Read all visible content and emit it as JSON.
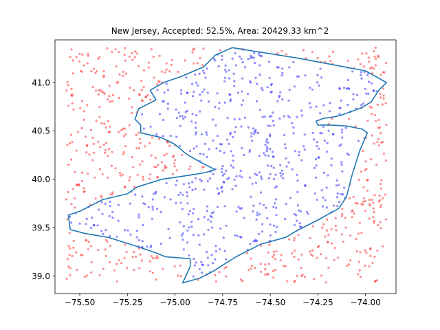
{
  "chart_data": {
    "type": "scatter",
    "title": "New Jersey, Accepted: 52.5%, Area: 20429.33 km^2",
    "xlabel": "",
    "ylabel": "",
    "xlim": [
      -75.63,
      -73.84
    ],
    "ylim": [
      38.82,
      41.44
    ],
    "grid": false,
    "x_ticks": [
      {
        "value": -75.5,
        "label": "−75.50"
      },
      {
        "value": -75.25,
        "label": "−75.25"
      },
      {
        "value": -75.0,
        "label": "−75.00"
      },
      {
        "value": -74.75,
        "label": "−74.75"
      },
      {
        "value": -74.5,
        "label": "−74.50"
      },
      {
        "value": -74.25,
        "label": "−74.25"
      },
      {
        "value": -74.0,
        "label": "−74.00"
      }
    ],
    "y_ticks": [
      {
        "value": 39.0,
        "label": "39.0"
      },
      {
        "value": 39.5,
        "label": "39.5"
      },
      {
        "value": 40.0,
        "label": "40.0"
      },
      {
        "value": 40.5,
        "label": "40.5"
      },
      {
        "value": 41.0,
        "label": "41.0"
      }
    ],
    "sampling_region": {
      "x": [
        -75.57,
        -73.89
      ],
      "y": [
        38.93,
        41.36
      ]
    },
    "accepted_fraction": 0.525,
    "series": [
      {
        "role": "accepted",
        "type": "scatter",
        "color": "#0000ff",
        "opacity": 0.45
      },
      {
        "role": "rejected",
        "type": "scatter",
        "color": "#ff0000",
        "opacity": 0.45
      },
      {
        "role": "boundary",
        "type": "line",
        "color": "#1f77b4",
        "points": [
          [
            -74.7,
            41.36
          ],
          [
            -74.35,
            41.25
          ],
          [
            -74.0,
            41.12
          ],
          [
            -73.89,
            41.0
          ],
          [
            -73.93,
            40.92
          ],
          [
            -73.97,
            40.8
          ],
          [
            -74.02,
            40.74
          ],
          [
            -74.13,
            40.66
          ],
          [
            -74.18,
            40.64
          ],
          [
            -74.22,
            40.63
          ],
          [
            -74.26,
            40.6
          ],
          [
            -74.25,
            40.56
          ],
          [
            -74.18,
            40.56
          ],
          [
            -74.1,
            40.55
          ],
          [
            -74.02,
            40.52
          ],
          [
            -73.99,
            40.48
          ],
          [
            -74.03,
            40.3
          ],
          [
            -74.07,
            40.05
          ],
          [
            -74.1,
            39.82
          ],
          [
            -74.14,
            39.7
          ],
          [
            -74.25,
            39.58
          ],
          [
            -74.36,
            39.47
          ],
          [
            -74.42,
            39.4
          ],
          [
            -74.55,
            39.33
          ],
          [
            -74.68,
            39.2
          ],
          [
            -74.8,
            39.05
          ],
          [
            -74.87,
            38.98
          ],
          [
            -74.96,
            38.93
          ],
          [
            -74.92,
            39.1
          ],
          [
            -74.92,
            39.18
          ],
          [
            -75.05,
            39.2
          ],
          [
            -75.1,
            39.24
          ],
          [
            -75.22,
            39.32
          ],
          [
            -75.35,
            39.4
          ],
          [
            -75.47,
            39.44
          ],
          [
            -75.55,
            39.48
          ],
          [
            -75.56,
            39.63
          ],
          [
            -75.5,
            39.67
          ],
          [
            -75.38,
            39.79
          ],
          [
            -75.25,
            39.85
          ],
          [
            -75.2,
            39.92
          ],
          [
            -75.07,
            40.0
          ],
          [
            -74.9,
            40.05
          ],
          [
            -74.84,
            40.07
          ],
          [
            -74.79,
            40.1
          ],
          [
            -74.86,
            40.17
          ],
          [
            -74.94,
            40.26
          ],
          [
            -75.0,
            40.36
          ],
          [
            -75.07,
            40.43
          ],
          [
            -75.18,
            40.48
          ],
          [
            -75.18,
            40.56
          ],
          [
            -75.21,
            40.62
          ],
          [
            -75.19,
            40.73
          ],
          [
            -75.1,
            40.82
          ],
          [
            -75.13,
            40.92
          ],
          [
            -75.06,
            41.0
          ],
          [
            -74.97,
            41.06
          ],
          [
            -74.85,
            41.16
          ],
          [
            -74.79,
            41.28
          ],
          [
            -74.7,
            41.36
          ]
        ]
      }
    ]
  }
}
